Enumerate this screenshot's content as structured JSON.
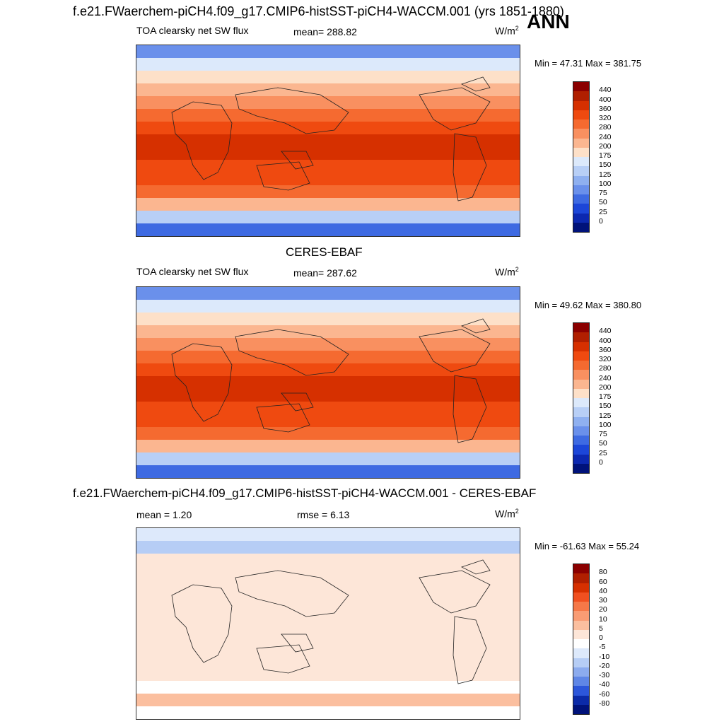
{
  "title_top": "f.e21.FWaerchem-piCH4.f09_g17.CMIP6-histSST-piCH4-WACCM.001 (yrs 1851-1880)",
  "season": "ANN",
  "panels": [
    {
      "title": "",
      "variable": "TOA clearsky net SW flux",
      "stat1": "mean= 288.82",
      "stat2": "",
      "units": "W/m",
      "units_sup": "2",
      "minmax": "Min =  47.31 Max = 381.75",
      "colorbar": {
        "labels": [
          "440",
          "400",
          "360",
          "320",
          "280",
          "240",
          "200",
          "175",
          "150",
          "125",
          "100",
          "75",
          "50",
          "25",
          "0"
        ],
        "colors": [
          "#8b0000",
          "#b01f00",
          "#d63000",
          "#ef4a10",
          "#f56a30",
          "#f99060",
          "#fbb690",
          "#fde0c8",
          "#dce9fb",
          "#b8cff6",
          "#8fb0f0",
          "#6a90eb",
          "#3e6ae2",
          "#1c46d8",
          "#0c28b0",
          "#00127a"
        ]
      }
    },
    {
      "title": "CERES-EBAF",
      "variable": "TOA clearsky net SW flux",
      "stat1": "mean= 287.62",
      "stat2": "",
      "units": "W/m",
      "units_sup": "2",
      "minmax": "Min =  49.62 Max = 380.80",
      "colorbar": {
        "labels": [
          "440",
          "400",
          "360",
          "320",
          "280",
          "240",
          "200",
          "175",
          "150",
          "125",
          "100",
          "75",
          "50",
          "25",
          "0"
        ],
        "colors": [
          "#8b0000",
          "#b01f00",
          "#d63000",
          "#ef4a10",
          "#f56a30",
          "#f99060",
          "#fbb690",
          "#fde0c8",
          "#dce9fb",
          "#b8cff6",
          "#8fb0f0",
          "#6a90eb",
          "#3e6ae2",
          "#1c46d8",
          "#0c28b0",
          "#00127a"
        ]
      }
    },
    {
      "title": "f.e21.FWaerchem-piCH4.f09_g17.CMIP6-histSST-piCH4-WACCM.001 - CERES-EBAF",
      "variable": "",
      "stat1": "mean =   1.20",
      "stat2": "rmse =   6.13",
      "units": "W/m",
      "units_sup": "2",
      "minmax": "Min = -61.63 Max =  55.24",
      "colorbar": {
        "labels": [
          "80",
          "60",
          "40",
          "30",
          "20",
          "10",
          "5",
          "0",
          "-5",
          "-10",
          "-20",
          "-30",
          "-40",
          "-60",
          "-80"
        ],
        "colors": [
          "#8b0000",
          "#b01f00",
          "#d63000",
          "#f05020",
          "#f57848",
          "#f99c74",
          "#fbbf9f",
          "#fde6d8",
          "#ffffff",
          "#dde9fb",
          "#b6cdf5",
          "#8cabee",
          "#5f86e6",
          "#2c56da",
          "#0b2aa8",
          "#00127a"
        ]
      }
    }
  ],
  "chart_data": [
    {
      "type": "heatmap",
      "title": "f.e21.FWaerchem-piCH4.f09_g17.CMIP6-histSST-piCH4-WACCM.001 (yrs 1851-1880)",
      "subtitle": "TOA clearsky net SW flux",
      "mean": 288.82,
      "min": 47.31,
      "max": 381.75,
      "units": "W/m2",
      "colorbar_levels": [
        0,
        25,
        50,
        75,
        100,
        125,
        150,
        175,
        200,
        240,
        280,
        320,
        360,
        400,
        440
      ],
      "zonal_profile_north_to_south": [
        90,
        150,
        190,
        230,
        270,
        310,
        340,
        360,
        365,
        350,
        320,
        280,
        230,
        140,
        60
      ]
    },
    {
      "type": "heatmap",
      "title": "CERES-EBAF",
      "subtitle": "TOA clearsky net SW flux",
      "mean": 287.62,
      "min": 49.62,
      "max": 380.8,
      "units": "W/m2",
      "colorbar_levels": [
        0,
        25,
        50,
        75,
        100,
        125,
        150,
        175,
        200,
        240,
        280,
        320,
        360,
        400,
        440
      ],
      "zonal_profile_north_to_south": [
        92,
        150,
        190,
        228,
        268,
        308,
        340,
        360,
        364,
        350,
        320,
        282,
        232,
        145,
        62
      ]
    },
    {
      "type": "heatmap",
      "title": "f.e21.FWaerchem-piCH4.f09_g17.CMIP6-histSST-piCH4-WACCM.001 - CERES-EBAF",
      "mean": 1.2,
      "rmse": 6.13,
      "min": -61.63,
      "max": 55.24,
      "units": "W/m2",
      "colorbar_levels": [
        -80,
        -60,
        -40,
        -30,
        -20,
        -10,
        -5,
        0,
        5,
        10,
        20,
        30,
        40,
        60,
        80
      ],
      "zonal_profile_north_to_south": [
        -10,
        -20,
        3,
        4,
        2,
        3,
        2,
        2,
        2,
        2,
        3,
        1,
        -3,
        8,
        -5
      ]
    }
  ]
}
